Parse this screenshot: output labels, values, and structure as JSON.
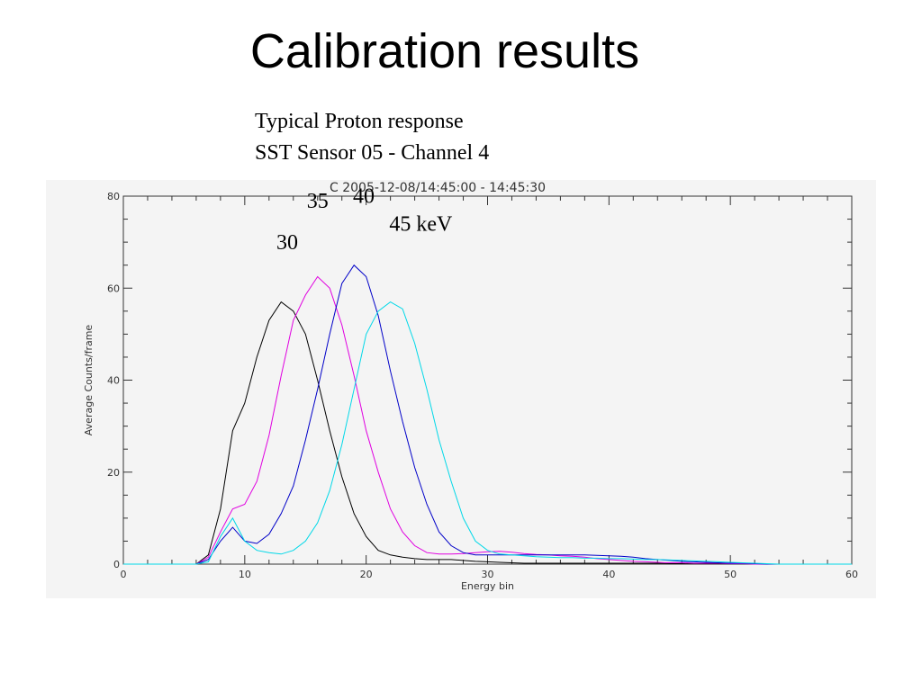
{
  "slide": {
    "title": "Calibration results",
    "caption_line1": "Typical Proton response",
    "caption_line2": "SST Sensor 05 - Channel 4"
  },
  "chart_data": {
    "type": "line",
    "title": "C  2005-12-08/14:45:00 - 14:45:30",
    "xlabel": "Energy bin",
    "ylabel": "Average Counts/frame",
    "xlim": [
      0,
      60
    ],
    "ylim": [
      0,
      80
    ],
    "xticks": [
      0,
      10,
      20,
      30,
      40,
      50,
      60
    ],
    "yticks": [
      0,
      20,
      40,
      60,
      80
    ],
    "grid": false,
    "annotations": [
      {
        "text": "30",
        "x": 13.5,
        "y": 68.5
      },
      {
        "text": "35",
        "x": 16,
        "y": 77.5
      },
      {
        "text": "40",
        "x": 19.8,
        "y": 78.5
      },
      {
        "text": "45 keV",
        "x": 24.5,
        "y": 72.5
      }
    ],
    "series": [
      {
        "color": "#000000",
        "x": [
          0,
          1,
          2,
          3,
          4,
          5,
          6,
          7,
          8,
          9,
          10,
          11,
          12,
          13,
          14,
          15,
          16,
          17,
          18,
          19,
          20,
          21,
          22,
          23,
          24,
          25,
          26,
          27,
          28,
          29,
          30,
          31,
          32,
          33,
          34,
          35,
          36,
          37,
          38,
          39,
          40,
          41,
          42,
          43,
          44,
          45,
          46,
          47,
          48,
          49,
          50,
          51,
          52,
          53,
          54,
          55,
          56,
          57,
          58,
          59,
          60
        ],
        "y": [
          0,
          0,
          0,
          0,
          0,
          0,
          0,
          2,
          12,
          29,
          35,
          45,
          53,
          57,
          55,
          50,
          40,
          29,
          19,
          11,
          6,
          3,
          2,
          1.5,
          1.2,
          1,
          1,
          1,
          0.8,
          0.6,
          0.5,
          0.4,
          0.3,
          0.2,
          0.2,
          0.2,
          0.2,
          0.2,
          0.2,
          0.2,
          0.2,
          0.2,
          0.2,
          0.2,
          0.2,
          0.1,
          0.1,
          0.1,
          0.1,
          0.1,
          0.1,
          0.1,
          0,
          0,
          0,
          0,
          0,
          0,
          0,
          0,
          0
        ]
      },
      {
        "color": "#e000e0",
        "x": [
          0,
          1,
          2,
          3,
          4,
          5,
          6,
          7,
          8,
          9,
          10,
          11,
          12,
          13,
          14,
          15,
          16,
          17,
          18,
          19,
          20,
          21,
          22,
          23,
          24,
          25,
          26,
          27,
          28,
          29,
          30,
          31,
          32,
          33,
          34,
          35,
          36,
          37,
          38,
          39,
          40,
          41,
          42,
          43,
          44,
          45,
          46,
          47,
          48,
          49,
          50,
          51,
          52,
          53,
          54,
          55,
          56,
          57,
          58,
          59,
          60
        ],
        "y": [
          0,
          0,
          0,
          0,
          0,
          0,
          0,
          1.5,
          7,
          12,
          13,
          18,
          28,
          41,
          53,
          58.5,
          62.5,
          60,
          52,
          41,
          29,
          20,
          12,
          7,
          4,
          2.5,
          2.2,
          2.2,
          2.3,
          2.5,
          2.7,
          2.8,
          2.6,
          2.3,
          2.1,
          2,
          1.8,
          1.7,
          1.5,
          1.2,
          1,
          0.8,
          0.6,
          0.5,
          0.4,
          0.3,
          0.3,
          0.2,
          0.2,
          0.2,
          0.1,
          0.1,
          0,
          0,
          0,
          0,
          0,
          0,
          0,
          0,
          0
        ]
      },
      {
        "color": "#0000c8",
        "x": [
          0,
          1,
          2,
          3,
          4,
          5,
          6,
          7,
          8,
          9,
          10,
          11,
          12,
          13,
          14,
          15,
          16,
          17,
          18,
          19,
          20,
          21,
          22,
          23,
          24,
          25,
          26,
          27,
          28,
          29,
          30,
          31,
          32,
          33,
          34,
          35,
          36,
          37,
          38,
          39,
          40,
          41,
          42,
          43,
          44,
          45,
          46,
          47,
          48,
          49,
          50,
          51,
          52,
          53,
          54,
          55,
          56,
          57,
          58,
          59,
          60
        ],
        "y": [
          0,
          0,
          0,
          0,
          0,
          0,
          0,
          1,
          5,
          8,
          5,
          4.5,
          6.5,
          11,
          17,
          27,
          38,
          50,
          61,
          65,
          62.5,
          54,
          42,
          31,
          21,
          13,
          7,
          4,
          2.5,
          2,
          2,
          2,
          2,
          2,
          2,
          2,
          2,
          2,
          2,
          1.9,
          1.8,
          1.7,
          1.5,
          1.2,
          1,
          0.8,
          0.6,
          0.5,
          0.4,
          0.3,
          0.2,
          0.2,
          0.1,
          0,
          0,
          0,
          0,
          0,
          0,
          0,
          0
        ]
      },
      {
        "color": "#00d8e8",
        "x": [
          0,
          1,
          2,
          3,
          4,
          5,
          6,
          7,
          8,
          9,
          10,
          11,
          12,
          13,
          14,
          15,
          16,
          17,
          18,
          19,
          20,
          21,
          22,
          23,
          24,
          25,
          26,
          27,
          28,
          29,
          30,
          31,
          32,
          33,
          34,
          35,
          36,
          37,
          38,
          39,
          40,
          41,
          42,
          43,
          44,
          45,
          46,
          47,
          48,
          49,
          50,
          51,
          52,
          53,
          54,
          55,
          56,
          57,
          58,
          59,
          60
        ],
        "y": [
          0,
          0,
          0,
          0,
          0,
          0,
          0,
          0.5,
          6,
          10,
          5,
          3,
          2.5,
          2.2,
          3,
          5,
          9,
          16,
          26,
          38,
          50,
          55,
          57,
          55.5,
          48,
          38,
          27,
          18,
          10,
          5,
          3,
          2.2,
          2,
          1.8,
          1.6,
          1.5,
          1.4,
          1.4,
          1.3,
          1.3,
          1.2,
          1.2,
          1.1,
          1,
          1,
          0.9,
          0.8,
          0.7,
          0.6,
          0.5,
          0.4,
          0.3,
          0.2,
          0.1,
          0,
          0,
          0,
          0,
          0,
          0,
          0
        ]
      }
    ]
  }
}
